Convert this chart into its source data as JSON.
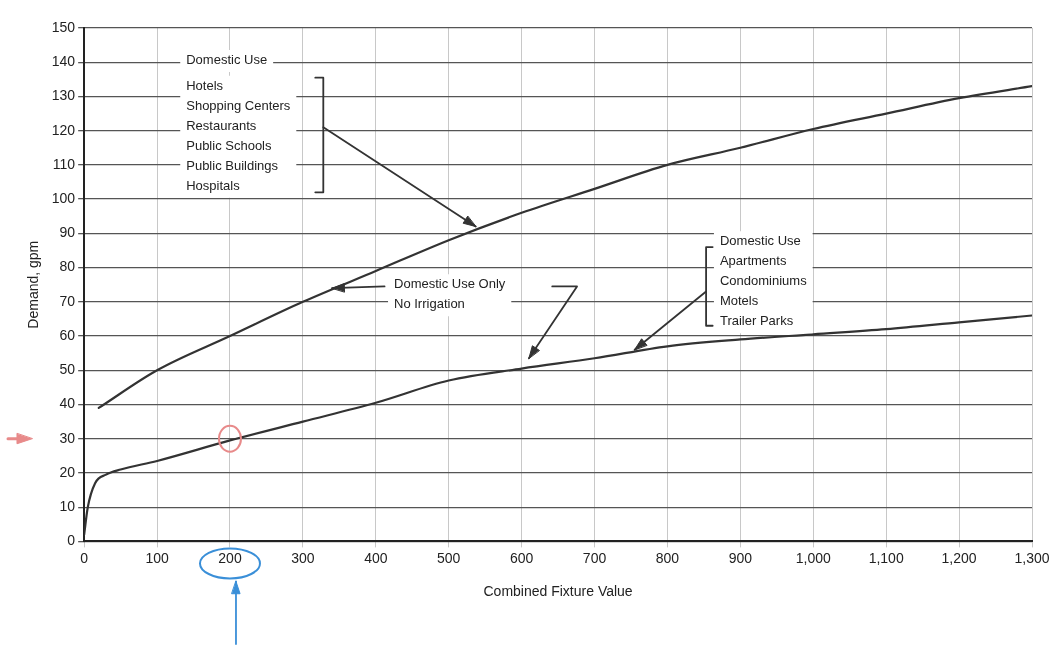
{
  "chart_data": {
    "type": "line",
    "xlabel": "Combined Fixture Value",
    "ylabel": "Demand, gpm",
    "xlim": [
      0,
      1300
    ],
    "ylim": [
      0,
      150
    ],
    "xticks": [
      0,
      100,
      200,
      300,
      400,
      500,
      600,
      700,
      800,
      900,
      {
        "value": 1000,
        "label": "1,000"
      },
      {
        "value": 1100,
        "label": "1,100"
      },
      {
        "value": 1200,
        "label": "1,200"
      },
      {
        "value": 1300,
        "label": "1,300"
      }
    ],
    "yticks": [
      0,
      10,
      20,
      30,
      40,
      50,
      60,
      70,
      80,
      90,
      100,
      110,
      120,
      130,
      140,
      150
    ],
    "grid": true,
    "legend": false,
    "marker": "none",
    "line_style": "solid",
    "series": [
      {
        "color": "#333333",
        "x": [
          20,
          100,
          200,
          300,
          400,
          500,
          600,
          700,
          800,
          900,
          1000,
          1100,
          1200,
          1300
        ],
        "values": [
          39,
          50,
          60,
          70,
          79,
          88,
          96,
          103,
          110,
          115,
          120.5,
          125,
          129.5,
          133
        ]
      },
      {
        "color": "#333333",
        "x": [
          0,
          5,
          15,
          30,
          50,
          100,
          200,
          300,
          400,
          500,
          600,
          700,
          800,
          900,
          1000,
          1100,
          1200,
          1300
        ],
        "values": [
          2,
          10,
          17,
          19.5,
          21,
          23.5,
          29.5,
          35,
          40.5,
          47,
          50.5,
          53.5,
          57,
          59,
          60.5,
          62,
          64,
          66
        ]
      }
    ],
    "annotations": [
      "Domestic Use",
      "Hotels\nShopping Centers\nRestaurants\nPublic Schools\nPublic Buildings\nHospitals",
      "Domestic Use Only\nNo Irrigation",
      {
        "text": "Domestic Use\nApartments\nCondominiums\nMotels\nTrailer Parks",
        "x": 755,
        "y": 56
      }
    ]
  }
}
